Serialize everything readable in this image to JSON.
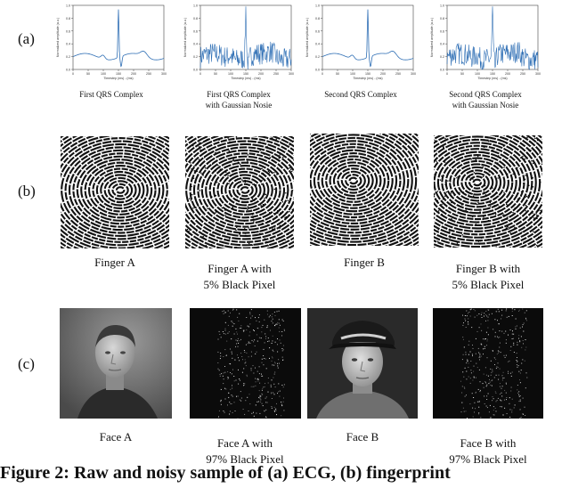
{
  "figure": {
    "row_labels": [
      "(a)",
      "(b)",
      "(c)"
    ],
    "ecg": {
      "panels": [
        {
          "caption1": "First QRS Complex",
          "caption2": "",
          "noisy": false
        },
        {
          "caption1": "First QRS Complex",
          "caption2": "with Gaussian Nosie",
          "noisy": true
        },
        {
          "caption1": "Second QRS Complex",
          "caption2": "",
          "noisy": false
        },
        {
          "caption1": "Second QRS Complex",
          "caption2": "with Gaussian Nosie",
          "noisy": true
        }
      ],
      "ylabel": "Normalized amplitude (a.u.)",
      "xlabel": "Timestep (ms) - (ms)",
      "xticks": [
        "0",
        "50",
        "100",
        "150",
        "200",
        "250",
        "300"
      ],
      "yticks": [
        "0.0",
        "0.2",
        "0.4",
        "0.6",
        "0.8",
        "1.0"
      ],
      "line_color": "#2f6fb5"
    },
    "finger": {
      "panels": [
        {
          "caption1": "Finger A",
          "caption2": ""
        },
        {
          "caption1": "Finger A with",
          "caption2": "5% Black Pixel"
        },
        {
          "caption1": "Finger B",
          "caption2": ""
        },
        {
          "caption1": "Finger B with",
          "caption2": "5% Black Pixel"
        }
      ]
    },
    "face": {
      "panels": [
        {
          "caption1": "Face A",
          "caption2": ""
        },
        {
          "caption1": "Face A with",
          "caption2": "97% Black Pixel"
        },
        {
          "caption1": "Face B",
          "caption2": ""
        },
        {
          "caption1": "Face B with",
          "caption2": "97% Black Pixel"
        }
      ]
    },
    "caption": "Figure 2: Raw and noisy sample of (a) ECG, (b) fingerprint"
  }
}
